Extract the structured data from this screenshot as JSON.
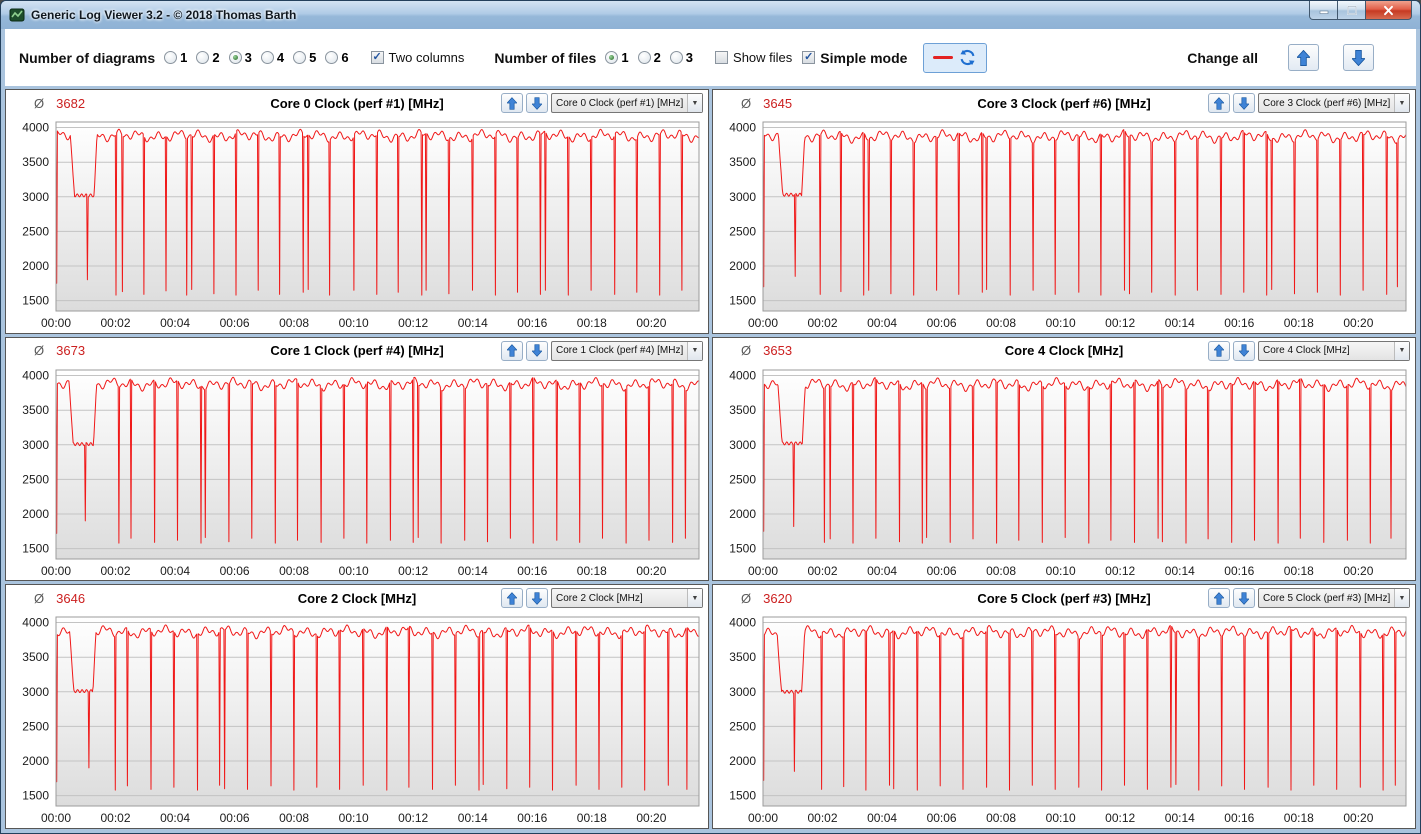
{
  "window": {
    "title": "Generic Log Viewer 3.2 - © 2018 Thomas Barth"
  },
  "icons": {
    "check": "✓",
    "dropdown_arrow": "▼",
    "average_symbol": "Ø"
  },
  "toolbar": {
    "number_of_diagrams_label": "Number of diagrams",
    "diagram_count_options": [
      "1",
      "2",
      "3",
      "4",
      "5",
      "6"
    ],
    "diagram_count_selected": "3",
    "two_columns": {
      "label": "Two columns",
      "checked": true
    },
    "number_of_files_label": "Number of files",
    "file_count_options": [
      "1",
      "2",
      "3"
    ],
    "file_count_selected": "1",
    "show_files": {
      "label": "Show files",
      "checked": false
    },
    "simple_mode": {
      "label": "Simple mode",
      "checked": true
    },
    "change_all_label": "Change all"
  },
  "chart_data": [
    {
      "type": "line",
      "title": "Core 0 Clock (perf #1) [MHz]",
      "average": "3682",
      "color": "#f01818",
      "x_range_min": [
        0,
        21.6
      ],
      "xticks": [
        "00:00",
        "00:02",
        "00:04",
        "00:06",
        "00:08",
        "00:10",
        "00:12",
        "00:14",
        "00:16",
        "00:18",
        "00:20"
      ],
      "yticks": [
        1500,
        2000,
        2500,
        3000,
        3500,
        4000
      ],
      "ylim": [
        1350,
        4080
      ],
      "baseline_mhz": 3880,
      "seed": 1,
      "plateau": {
        "t0": 0.62,
        "t1": 1.28,
        "value": 3020
      },
      "dips": [
        [
          0.03,
          1750
        ],
        [
          1.05,
          1800
        ],
        [
          2.02,
          1580
        ],
        [
          2.22,
          1630
        ],
        [
          2.95,
          1590
        ],
        [
          3.7,
          1640
        ],
        [
          4.4,
          1580
        ],
        [
          4.56,
          1660
        ],
        [
          5.3,
          1600
        ],
        [
          6.05,
          1580
        ],
        [
          6.8,
          1650
        ],
        [
          7.52,
          1590
        ],
        [
          8.3,
          1620
        ],
        [
          8.46,
          1660
        ],
        [
          9.2,
          1580
        ],
        [
          10.0,
          1650
        ],
        [
          10.78,
          1590
        ],
        [
          11.5,
          1620
        ],
        [
          12.28,
          1580
        ],
        [
          12.44,
          1650
        ],
        [
          13.2,
          1600
        ],
        [
          13.98,
          1650
        ],
        [
          14.76,
          1580
        ],
        [
          15.5,
          1620
        ],
        [
          16.28,
          1590
        ],
        [
          16.44,
          1650
        ],
        [
          17.2,
          1580
        ],
        [
          17.98,
          1650
        ],
        [
          18.76,
          1590
        ],
        [
          19.5,
          1620
        ],
        [
          20.28,
          1580
        ],
        [
          21.02,
          1650
        ]
      ]
    },
    {
      "type": "line",
      "title": "Core 3 Clock (perf #6) [MHz]",
      "average": "3645",
      "color": "#f01818",
      "x_range_min": [
        0,
        21.6
      ],
      "xticks": [
        "00:00",
        "00:02",
        "00:04",
        "00:06",
        "00:08",
        "00:10",
        "00:12",
        "00:14",
        "00:16",
        "00:18",
        "00:20"
      ],
      "yticks": [
        1500,
        2000,
        2500,
        3000,
        3500,
        4000
      ],
      "ylim": [
        1350,
        4080
      ],
      "baseline_mhz": 3870,
      "seed": 2,
      "plateau": {
        "t0": 0.66,
        "t1": 1.3,
        "value": 3030
      },
      "dips": [
        [
          0.03,
          1700
        ],
        [
          1.08,
          1850
        ],
        [
          1.92,
          1590
        ],
        [
          2.62,
          1630
        ],
        [
          3.38,
          1580
        ],
        [
          3.54,
          1650
        ],
        [
          4.3,
          1600
        ],
        [
          5.06,
          1580
        ],
        [
          5.82,
          1650
        ],
        [
          6.58,
          1590
        ],
        [
          7.36,
          1620
        ],
        [
          7.52,
          1660
        ],
        [
          8.3,
          1580
        ],
        [
          9.06,
          1650
        ],
        [
          9.82,
          1590
        ],
        [
          10.6,
          1620
        ],
        [
          11.36,
          1580
        ],
        [
          12.14,
          1650
        ],
        [
          12.3,
          1600
        ],
        [
          13.06,
          1620
        ],
        [
          13.84,
          1580
        ],
        [
          14.6,
          1650
        ],
        [
          15.38,
          1590
        ],
        [
          16.14,
          1620
        ],
        [
          16.92,
          1580
        ],
        [
          17.08,
          1660
        ],
        [
          17.86,
          1600
        ],
        [
          18.62,
          1620
        ],
        [
          19.4,
          1580
        ],
        [
          20.16,
          1650
        ],
        [
          20.94,
          1590
        ],
        [
          21.3,
          1700
        ]
      ]
    },
    {
      "type": "line",
      "title": "Core 1 Clock (perf #4) [MHz]",
      "average": "3673",
      "color": "#f01818",
      "x_range_min": [
        0,
        21.6
      ],
      "xticks": [
        "00:00",
        "00:02",
        "00:04",
        "00:06",
        "00:08",
        "00:10",
        "00:12",
        "00:14",
        "00:16",
        "00:18",
        "00:20"
      ],
      "yticks": [
        1500,
        2000,
        2500,
        3000,
        3500,
        4000
      ],
      "ylim": [
        1350,
        4080
      ],
      "baseline_mhz": 3875,
      "seed": 3,
      "plateau": {
        "t0": 0.58,
        "t1": 1.26,
        "value": 3010
      },
      "dips": [
        [
          0.03,
          1720
        ],
        [
          0.98,
          1900
        ],
        [
          2.1,
          1580
        ],
        [
          2.52,
          1650
        ],
        [
          3.3,
          1590
        ],
        [
          4.08,
          1620
        ],
        [
          4.86,
          1580
        ],
        [
          5.02,
          1660
        ],
        [
          5.8,
          1600
        ],
        [
          6.58,
          1650
        ],
        [
          7.36,
          1580
        ],
        [
          8.12,
          1620
        ],
        [
          8.9,
          1590
        ],
        [
          9.68,
          1650
        ],
        [
          10.44,
          1580
        ],
        [
          11.22,
          1620
        ],
        [
          12.0,
          1590
        ],
        [
          12.16,
          1660
        ],
        [
          12.94,
          1580
        ],
        [
          13.72,
          1620
        ],
        [
          14.5,
          1600
        ],
        [
          15.26,
          1650
        ],
        [
          16.04,
          1580
        ],
        [
          16.82,
          1620
        ],
        [
          17.6,
          1590
        ],
        [
          18.36,
          1650
        ],
        [
          19.14,
          1580
        ],
        [
          19.92,
          1620
        ],
        [
          20.7,
          1590
        ],
        [
          21.14,
          1650
        ]
      ]
    },
    {
      "type": "line",
      "title": "Core 4 Clock [MHz]",
      "average": "3653",
      "color": "#f01818",
      "x_range_min": [
        0,
        21.6
      ],
      "xticks": [
        "00:00",
        "00:02",
        "00:04",
        "00:06",
        "00:08",
        "00:10",
        "00:12",
        "00:14",
        "00:16",
        "00:18",
        "00:20"
      ],
      "yticks": [
        1500,
        2000,
        2500,
        3000,
        3500,
        4000
      ],
      "ylim": [
        1350,
        4080
      ],
      "baseline_mhz": 3870,
      "seed": 4,
      "plateau": {
        "t0": 0.64,
        "t1": 1.32,
        "value": 3020
      },
      "dips": [
        [
          0.03,
          1750
        ],
        [
          1.02,
          1820
        ],
        [
          2.06,
          1590
        ],
        [
          2.26,
          1640
        ],
        [
          3.02,
          1580
        ],
        [
          3.8,
          1650
        ],
        [
          4.58,
          1600
        ],
        [
          5.34,
          1580
        ],
        [
          5.5,
          1660
        ],
        [
          6.28,
          1590
        ],
        [
          7.06,
          1640
        ],
        [
          7.84,
          1580
        ],
        [
          8.6,
          1620
        ],
        [
          9.38,
          1590
        ],
        [
          10.16,
          1660
        ],
        [
          10.94,
          1580
        ],
        [
          11.7,
          1620
        ],
        [
          12.48,
          1590
        ],
        [
          13.26,
          1650
        ],
        [
          13.42,
          1600
        ],
        [
          14.2,
          1580
        ],
        [
          14.96,
          1640
        ],
        [
          15.74,
          1590
        ],
        [
          16.52,
          1620
        ],
        [
          17.3,
          1580
        ],
        [
          18.06,
          1650
        ],
        [
          18.84,
          1590
        ],
        [
          19.62,
          1620
        ],
        [
          20.4,
          1580
        ],
        [
          21.1,
          1650
        ]
      ]
    },
    {
      "type": "line",
      "title": "Core 2 Clock [MHz]",
      "average": "3646",
      "color": "#f01818",
      "x_range_min": [
        0,
        21.6
      ],
      "xticks": [
        "00:00",
        "00:02",
        "00:04",
        "00:06",
        "00:08",
        "00:10",
        "00:12",
        "00:14",
        "00:16",
        "00:18",
        "00:20"
      ],
      "yticks": [
        1500,
        2000,
        2500,
        3000,
        3500,
        4000
      ],
      "ylim": [
        1350,
        4080
      ],
      "baseline_mhz": 3865,
      "seed": 5,
      "plateau": {
        "t0": 0.6,
        "t1": 1.24,
        "value": 3010
      },
      "dips": [
        [
          0.03,
          1700
        ],
        [
          1.1,
          1900
        ],
        [
          2.0,
          1580
        ],
        [
          2.4,
          1640
        ],
        [
          3.18,
          1590
        ],
        [
          3.96,
          1620
        ],
        [
          4.74,
          1580
        ],
        [
          5.5,
          1650
        ],
        [
          5.66,
          1600
        ],
        [
          6.44,
          1590
        ],
        [
          7.22,
          1640
        ],
        [
          8.0,
          1580
        ],
        [
          8.76,
          1620
        ],
        [
          9.54,
          1590
        ],
        [
          10.32,
          1650
        ],
        [
          11.1,
          1580
        ],
        [
          11.86,
          1620
        ],
        [
          12.64,
          1590
        ],
        [
          13.42,
          1650
        ],
        [
          14.2,
          1580
        ],
        [
          14.36,
          1660
        ],
        [
          15.14,
          1600
        ],
        [
          15.9,
          1620
        ],
        [
          16.68,
          1580
        ],
        [
          17.46,
          1650
        ],
        [
          18.24,
          1590
        ],
        [
          19.0,
          1620
        ],
        [
          19.78,
          1580
        ],
        [
          20.56,
          1650
        ],
        [
          21.2,
          1590
        ]
      ]
    },
    {
      "type": "line",
      "title": "Core 5 Clock (perf #3) [MHz]",
      "average": "3620",
      "color": "#f01818",
      "x_range_min": [
        0,
        21.6
      ],
      "xticks": [
        "00:00",
        "00:02",
        "00:04",
        "00:06",
        "00:08",
        "00:10",
        "00:12",
        "00:14",
        "00:16",
        "00:18",
        "00:20"
      ],
      "yticks": [
        1500,
        2000,
        2500,
        3000,
        3500,
        4000
      ],
      "ylim": [
        1350,
        4080
      ],
      "baseline_mhz": 3860,
      "seed": 6,
      "plateau": {
        "t0": 0.62,
        "t1": 1.3,
        "value": 3000
      },
      "dips": [
        [
          0.03,
          1720
        ],
        [
          1.06,
          1850
        ],
        [
          1.96,
          1590
        ],
        [
          2.7,
          1630
        ],
        [
          3.46,
          1580
        ],
        [
          4.24,
          1650
        ],
        [
          4.4,
          1600
        ],
        [
          5.18,
          1580
        ],
        [
          5.94,
          1640
        ],
        [
          6.72,
          1590
        ],
        [
          7.5,
          1620
        ],
        [
          8.28,
          1580
        ],
        [
          9.04,
          1650
        ],
        [
          9.82,
          1590
        ],
        [
          10.6,
          1620
        ],
        [
          11.38,
          1580
        ],
        [
          12.14,
          1650
        ],
        [
          12.92,
          1590
        ],
        [
          13.7,
          1620
        ],
        [
          13.86,
          1660
        ],
        [
          14.64,
          1580
        ],
        [
          15.4,
          1640
        ],
        [
          16.18,
          1590
        ],
        [
          16.96,
          1620
        ],
        [
          17.74,
          1580
        ],
        [
          18.5,
          1650
        ],
        [
          19.28,
          1590
        ],
        [
          20.06,
          1620
        ],
        [
          20.84,
          1580
        ],
        [
          21.24,
          1650
        ]
      ]
    }
  ]
}
